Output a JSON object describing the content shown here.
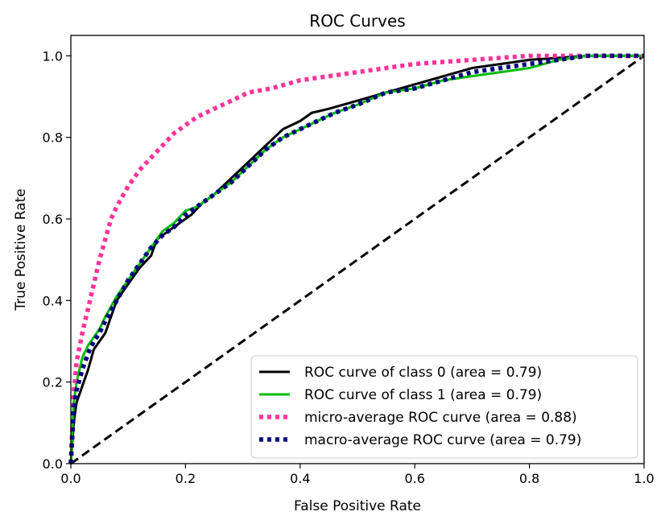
{
  "chart_data": {
    "type": "line",
    "title": "ROC Curves",
    "xlabel": "False Positive Rate",
    "ylabel": "True Positive Rate",
    "xlim": [
      0.0,
      1.0
    ],
    "ylim": [
      0.0,
      1.05
    ],
    "xticks": [
      0.0,
      0.2,
      0.4,
      0.6,
      0.8,
      1.0
    ],
    "yticks": [
      0.0,
      0.2,
      0.4,
      0.6,
      0.8,
      1.0
    ],
    "xtick_labels": [
      "0.0",
      "0.2",
      "0.4",
      "0.6",
      "0.8",
      "1.0"
    ],
    "ytick_labels": [
      "0.0",
      "0.2",
      "0.4",
      "0.6",
      "0.8",
      "1.0"
    ],
    "grid": false,
    "legend_position": "lower-right",
    "series": [
      {
        "name": "ROC curve of class 0 (area = 0.79)",
        "color": "#000000",
        "style": "solid",
        "x": [
          0.0,
          0.005,
          0.01,
          0.02,
          0.03,
          0.04,
          0.05,
          0.06,
          0.08,
          0.1,
          0.12,
          0.14,
          0.15,
          0.17,
          0.19,
          0.21,
          0.23,
          0.25,
          0.28,
          0.31,
          0.34,
          0.37,
          0.4,
          0.42,
          0.45,
          0.5,
          0.55,
          0.6,
          0.65,
          0.7,
          0.75,
          0.8,
          0.85,
          0.9,
          0.95,
          1.0
        ],
        "y": [
          0.0,
          0.1,
          0.15,
          0.19,
          0.23,
          0.28,
          0.3,
          0.32,
          0.4,
          0.44,
          0.48,
          0.51,
          0.55,
          0.57,
          0.59,
          0.61,
          0.64,
          0.66,
          0.7,
          0.74,
          0.78,
          0.82,
          0.84,
          0.86,
          0.87,
          0.89,
          0.91,
          0.93,
          0.95,
          0.97,
          0.98,
          0.99,
          0.995,
          1.0,
          1.0,
          1.0
        ]
      },
      {
        "name": "ROC curve of class 1 (area = 0.79)",
        "color": "#00bb00",
        "style": "solid",
        "x": [
          0.0,
          0.005,
          0.01,
          0.02,
          0.03,
          0.04,
          0.05,
          0.06,
          0.08,
          0.1,
          0.12,
          0.14,
          0.16,
          0.18,
          0.2,
          0.22,
          0.25,
          0.28,
          0.31,
          0.34,
          0.37,
          0.4,
          0.43,
          0.46,
          0.5,
          0.55,
          0.6,
          0.65,
          0.7,
          0.75,
          0.8,
          0.85,
          0.9,
          0.95,
          1.0
        ],
        "y": [
          0.0,
          0.15,
          0.2,
          0.26,
          0.29,
          0.31,
          0.33,
          0.36,
          0.41,
          0.45,
          0.49,
          0.53,
          0.57,
          0.59,
          0.62,
          0.63,
          0.66,
          0.69,
          0.73,
          0.77,
          0.8,
          0.82,
          0.84,
          0.86,
          0.88,
          0.91,
          0.92,
          0.94,
          0.95,
          0.96,
          0.97,
          0.99,
          1.0,
          1.0,
          1.0
        ]
      },
      {
        "name": "micro-average ROC curve (area = 0.88)",
        "color": "#ff3399",
        "style": "dotted",
        "x": [
          0.0,
          0.005,
          0.01,
          0.02,
          0.03,
          0.04,
          0.05,
          0.06,
          0.07,
          0.08,
          0.1,
          0.12,
          0.14,
          0.16,
          0.18,
          0.2,
          0.22,
          0.25,
          0.28,
          0.31,
          0.35,
          0.4,
          0.45,
          0.5,
          0.55,
          0.6,
          0.65,
          0.7,
          0.75,
          0.8,
          0.85,
          0.9,
          0.95,
          1.0
        ],
        "y": [
          0.0,
          0.17,
          0.25,
          0.32,
          0.38,
          0.44,
          0.5,
          0.55,
          0.6,
          0.63,
          0.68,
          0.72,
          0.75,
          0.78,
          0.81,
          0.83,
          0.85,
          0.87,
          0.89,
          0.91,
          0.92,
          0.94,
          0.95,
          0.96,
          0.97,
          0.98,
          0.985,
          0.99,
          0.995,
          1.0,
          1.0,
          1.0,
          1.0,
          1.0
        ]
      },
      {
        "name": "macro-average ROC curve (area = 0.79)",
        "color": "#000080",
        "style": "dotted",
        "x": [
          0.0,
          0.005,
          0.01,
          0.02,
          0.03,
          0.04,
          0.05,
          0.06,
          0.08,
          0.1,
          0.12,
          0.14,
          0.16,
          0.18,
          0.2,
          0.22,
          0.25,
          0.28,
          0.31,
          0.34,
          0.37,
          0.4,
          0.43,
          0.46,
          0.5,
          0.55,
          0.6,
          0.65,
          0.7,
          0.75,
          0.8,
          0.85,
          0.9,
          0.95,
          1.0
        ],
        "y": [
          0.0,
          0.13,
          0.18,
          0.23,
          0.27,
          0.3,
          0.32,
          0.35,
          0.4,
          0.45,
          0.49,
          0.53,
          0.56,
          0.58,
          0.61,
          0.63,
          0.66,
          0.69,
          0.73,
          0.77,
          0.8,
          0.82,
          0.84,
          0.86,
          0.88,
          0.91,
          0.92,
          0.94,
          0.96,
          0.97,
          0.98,
          0.99,
          1.0,
          1.0,
          1.0
        ]
      }
    ],
    "reference_line": {
      "color": "#000000",
      "style": "dashed",
      "x": [
        0.0,
        1.0
      ],
      "y": [
        0.0,
        1.0
      ]
    }
  }
}
